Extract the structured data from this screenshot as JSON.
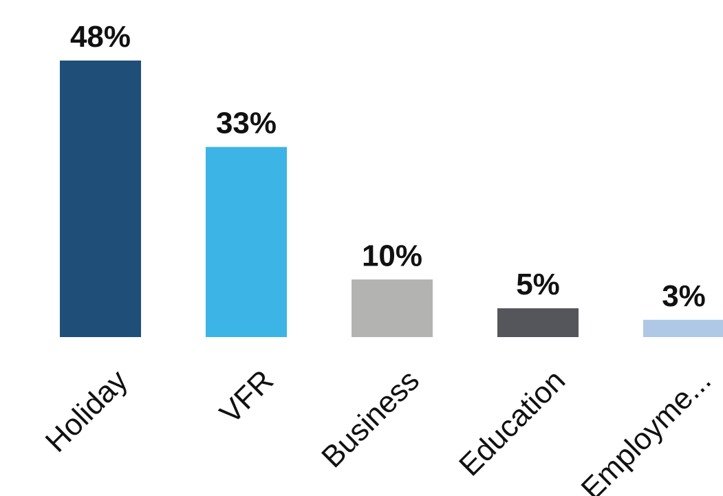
{
  "chart_data": {
    "type": "bar",
    "categories": [
      "Holiday",
      "VFR",
      "Business",
      "Education",
      "Employme..."
    ],
    "values": [
      48,
      33,
      10,
      5,
      3
    ],
    "value_labels": [
      "48%",
      "33%",
      "10%",
      "5%",
      "3%"
    ],
    "colors": [
      "#1f4e79",
      "#3cb4e5",
      "#b3b3b1",
      "#55565b",
      "#aec8e6"
    ],
    "title": "",
    "xlabel": "",
    "ylabel": "",
    "ylim": [
      0,
      48
    ],
    "grid": false,
    "legend": "none"
  }
}
